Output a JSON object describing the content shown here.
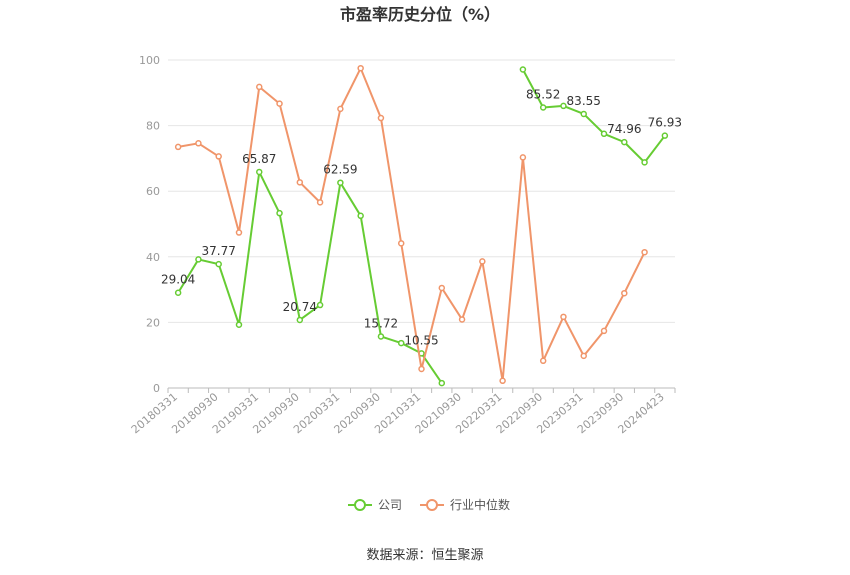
{
  "chart_data": {
    "type": "line",
    "title": "市盈率历史分位（%）",
    "source": "数据来源：恒生聚源",
    "x": [
      "20180331",
      "20180630",
      "20180930",
      "20181231",
      "20190331",
      "20190630",
      "20190930",
      "20191231",
      "20200331",
      "20200630",
      "20200930",
      "20201231",
      "20210331",
      "20210630",
      "20210930",
      "20211231",
      "20220331",
      "20220630",
      "20220930",
      "20221231",
      "20230331",
      "20230630",
      "20230930",
      "20231231",
      "20240423"
    ],
    "x_tick_labels": [
      "20180331",
      "20180930",
      "20190331",
      "20190930",
      "20200331",
      "20200930",
      "20210331",
      "20210930",
      "20220331",
      "20220930",
      "20230331",
      "20230930",
      "20240423"
    ],
    "ylim": [
      0,
      100
    ],
    "y_ticks": [
      0,
      20,
      40,
      60,
      80,
      100
    ],
    "grid": true,
    "legend_position": "bottom",
    "series": [
      {
        "name": "公司",
        "color": "#66cc33",
        "values": [
          29.04,
          39.2,
          37.77,
          19.3,
          65.87,
          53.3,
          20.74,
          25.3,
          62.59,
          52.5,
          15.72,
          13.7,
          10.55,
          1.5,
          null,
          null,
          null,
          97.1,
          85.52,
          86.0,
          83.55,
          77.5,
          74.96,
          68.8,
          76.93
        ],
        "labels": {
          "0": "29.04",
          "2": "37.77",
          "4": "65.87",
          "6": "20.74",
          "8": "62.59",
          "10": "15.72",
          "12": "10.55",
          "18": "85.52",
          "20": "83.55",
          "22": "74.96",
          "24": "76.93"
        }
      },
      {
        "name": "行业中位数",
        "color": "#f0956a",
        "values": [
          73.5,
          74.6,
          70.6,
          47.4,
          91.8,
          86.7,
          62.7,
          56.6,
          85.1,
          97.5,
          82.3,
          44.1,
          5.8,
          30.5,
          20.9,
          38.6,
          2.2,
          70.3,
          8.3,
          21.7,
          9.8,
          17.4,
          28.9,
          41.4,
          null
        ]
      }
    ]
  }
}
